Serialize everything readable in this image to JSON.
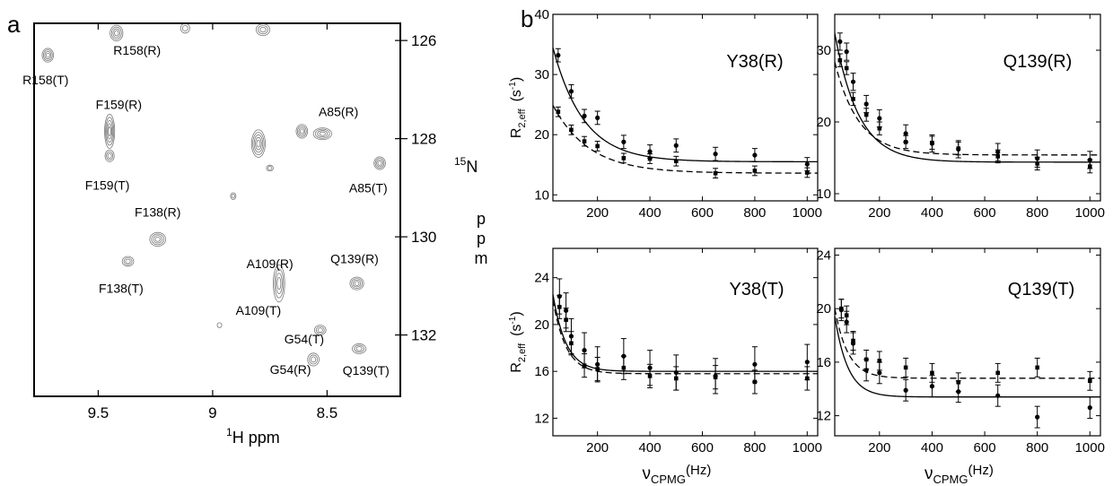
{
  "panel_labels": {
    "a": "a",
    "b": "b"
  },
  "chart_data": [
    {
      "type": "scatter",
      "panel": "a",
      "title": "",
      "xlabel_sup": "1",
      "xlabel": "H ppm",
      "ylabel_sup": "15",
      "ylabel_main": "N",
      "ylabel_unit": [
        "p",
        "p",
        "m"
      ],
      "xlim": [
        9.78,
        8.18
      ],
      "ylim": [
        125.65,
        133.25
      ],
      "xticks": [
        {
          "v": 9.5,
          "label": "9.5"
        },
        {
          "v": 9.0,
          "label": "9"
        },
        {
          "v": 8.5,
          "label": "8.5"
        }
      ],
      "yticks": [
        {
          "v": 126,
          "label": "126"
        },
        {
          "v": 128,
          "label": "128"
        },
        {
          "v": 130,
          "label": "130"
        },
        {
          "v": 132,
          "label": "132"
        }
      ],
      "peaks": [
        {
          "h": 9.72,
          "n": 126.3,
          "label": "R158(T)",
          "lh": 9.73,
          "ln": 126.8,
          "rx": 0.025,
          "ry": 0.14,
          "rings": 4
        },
        {
          "h": 9.42,
          "n": 125.85,
          "label": "R158(R)",
          "lh": 9.33,
          "ln": 126.2,
          "rx": 0.028,
          "ry": 0.16,
          "rings": 4
        },
        {
          "h": 9.12,
          "n": 125.75,
          "label": "",
          "lh": 0,
          "ln": 0,
          "rx": 0.02,
          "ry": 0.1,
          "rings": 2
        },
        {
          "h": 8.78,
          "n": 125.78,
          "label": "",
          "lh": 0,
          "ln": 0,
          "rx": 0.03,
          "ry": 0.12,
          "rings": 3
        },
        {
          "h": 9.45,
          "n": 127.85,
          "label": "F159(R)",
          "lh": 9.41,
          "ln": 127.3,
          "rx": 0.022,
          "ry": 0.35,
          "rings": 5
        },
        {
          "h": 9.45,
          "n": 128.35,
          "label": "F159(T)",
          "lh": 9.46,
          "ln": 128.95,
          "rx": 0.02,
          "ry": 0.12,
          "rings": 3
        },
        {
          "h": 8.8,
          "n": 128.1,
          "label": "",
          "lh": 0,
          "ln": 0,
          "rx": 0.03,
          "ry": 0.28,
          "rings": 5
        },
        {
          "h": 8.75,
          "n": 128.6,
          "label": "",
          "lh": 0,
          "ln": 0,
          "rx": 0.015,
          "ry": 0.06,
          "rings": 2
        },
        {
          "h": 8.61,
          "n": 127.85,
          "label": "",
          "lh": 0,
          "ln": 0,
          "rx": 0.025,
          "ry": 0.14,
          "rings": 4
        },
        {
          "h": 8.52,
          "n": 127.9,
          "label": "A85(R)",
          "lh": 8.45,
          "ln": 127.45,
          "rx": 0.04,
          "ry": 0.12,
          "rings": 4
        },
        {
          "h": 8.27,
          "n": 128.5,
          "label": "A85(T)",
          "lh": 8.32,
          "ln": 129.0,
          "rx": 0.025,
          "ry": 0.13,
          "rings": 4
        },
        {
          "h": 8.91,
          "n": 129.17,
          "label": "",
          "lh": 0,
          "ln": 0,
          "rx": 0.012,
          "ry": 0.07,
          "rings": 2
        },
        {
          "h": 9.24,
          "n": 130.05,
          "label": "F138(R)",
          "lh": 9.24,
          "ln": 129.5,
          "rx": 0.035,
          "ry": 0.14,
          "rings": 4
        },
        {
          "h": 9.37,
          "n": 130.5,
          "label": "F138(T)",
          "lh": 9.4,
          "ln": 131.05,
          "rx": 0.025,
          "ry": 0.1,
          "rings": 3
        },
        {
          "h": 8.71,
          "n": 130.95,
          "label": "A109(R)",
          "lh": 8.75,
          "ln": 130.55,
          "rx": 0.025,
          "ry": 0.38,
          "rings": 4
        },
        {
          "h": 8.37,
          "n": 130.95,
          "label": "Q139(R)",
          "lh": 8.38,
          "ln": 130.45,
          "rx": 0.03,
          "ry": 0.13,
          "rings": 4
        },
        {
          "h": 8.53,
          "n": 131.9,
          "label": "G54(T)",
          "lh": 8.6,
          "ln": 132.08,
          "rx": 0.025,
          "ry": 0.1,
          "rings": 3
        },
        {
          "h": 8.56,
          "n": 132.5,
          "label": "G54(R)",
          "lh": 8.66,
          "ln": 132.7,
          "rx": 0.025,
          "ry": 0.13,
          "rings": 3
        },
        {
          "h": 8.36,
          "n": 132.28,
          "label": "Q139(T)",
          "lh": 8.33,
          "ln": 132.72,
          "rx": 0.03,
          "ry": 0.1,
          "rings": 3
        },
        {
          "h": 8.97,
          "n": 131.8,
          "label": "",
          "lh": 0,
          "ln": 0,
          "rx": 0.01,
          "ry": 0.05,
          "rings": 1
        }
      ],
      "extra_labels": [
        {
          "text": "A109(T)",
          "h": 8.8,
          "n": 131.5
        }
      ]
    },
    {
      "type": "line",
      "panel": "b-top-left",
      "label": "Y38(R)",
      "ylabel": "R",
      "ylabel_sub": "2,eff",
      "ylabel_unit": "(s",
      "ylabel_unit_sup": "-1",
      "xlim": [
        30,
        1040
      ],
      "ylim": [
        9,
        40
      ],
      "xticks": [
        200,
        400,
        600,
        800,
        1000
      ],
      "yticks": [
        10,
        20,
        30,
        40
      ],
      "series": [
        {
          "style": "solid",
          "points": [
            [
              50,
              33.2
            ],
            [
              100,
              27.2
            ],
            [
              150,
              23.1
            ],
            [
              200,
              22.8
            ],
            [
              300,
              18.8
            ],
            [
              400,
              17.2
            ],
            [
              500,
              18.2
            ],
            [
              650,
              16.8
            ],
            [
              800,
              16.6
            ],
            [
              1000,
              15.1
            ]
          ],
          "err": 1.1,
          "fit": {
            "base": 15.5,
            "amp": 24.5,
            "k": 0.0085
          }
        },
        {
          "style": "dashed",
          "points": [
            [
              50,
              23.8
            ],
            [
              100,
              20.8
            ],
            [
              150,
              18.9
            ],
            [
              200,
              18.1
            ],
            [
              300,
              16.1
            ],
            [
              400,
              16.0
            ],
            [
              500,
              15.6
            ],
            [
              650,
              13.6
            ],
            [
              800,
              14.0
            ],
            [
              1000,
              13.7
            ]
          ],
          "err": 0.8,
          "fit": {
            "base": 13.6,
            "amp": 14.0,
            "k": 0.0072
          }
        }
      ]
    },
    {
      "type": "line",
      "panel": "b-top-right",
      "label": "Q139(R)",
      "xlim": [
        30,
        1040
      ],
      "ylim": [
        9,
        35
      ],
      "xticks": [
        200,
        400,
        600,
        800,
        1000
      ],
      "yticks": [
        10,
        20,
        30
      ],
      "series": [
        {
          "style": "solid",
          "points": [
            [
              50,
              31.2
            ],
            [
              75,
              29.8
            ],
            [
              100,
              25.6
            ],
            [
              150,
              22.5
            ],
            [
              200,
              20.5
            ],
            [
              300,
              18.4
            ],
            [
              400,
              17.0
            ],
            [
              500,
              16.2
            ],
            [
              650,
              15.8
            ],
            [
              800,
              14.9
            ],
            [
              1000,
              14.7
            ]
          ],
          "err": 1.2,
          "fit": {
            "base": 14.4,
            "amp": 25.0,
            "k": 0.011
          }
        },
        {
          "style": "dashed",
          "points": [
            [
              50,
              28.6
            ],
            [
              75,
              27.5
            ],
            [
              100,
              23.2
            ],
            [
              150,
              21.0
            ],
            [
              200,
              19.1
            ],
            [
              300,
              17.2
            ],
            [
              400,
              17.1
            ],
            [
              500,
              16.3
            ],
            [
              650,
              15.2
            ],
            [
              800,
              14.2
            ],
            [
              1000,
              13.8
            ]
          ],
          "err": 0.9,
          "fit": {
            "base": 15.4,
            "amp": 18.0,
            "k": 0.011
          }
        }
      ]
    },
    {
      "type": "line",
      "panel": "b-bottom-left",
      "label": "Y38(T)",
      "ylabel": "R",
      "ylabel_sub": "2,eff",
      "ylabel_unit": "(s",
      "ylabel_unit_sup": "-1",
      "xlabel": "ν",
      "xlabel_sub": "CPMG",
      "xlabel_unit": "(Hz)",
      "xlim": [
        30,
        1040
      ],
      "ylim": [
        10.5,
        26.5
      ],
      "xticks": [
        200,
        400,
        600,
        800,
        1000
      ],
      "yticks": [
        12,
        16,
        20,
        24
      ],
      "series": [
        {
          "style": "solid",
          "points": [
            [
              55,
              22.4
            ],
            [
              80,
              21.2
            ],
            [
              100,
              19.0
            ],
            [
              150,
              17.8
            ],
            [
              200,
              16.6
            ],
            [
              300,
              17.3
            ],
            [
              400,
              16.3
            ],
            [
              500,
              15.9
            ],
            [
              650,
              15.6
            ],
            [
              800,
              16.6
            ],
            [
              1000,
              16.8
            ]
          ],
          "err": 1.5,
          "fit": {
            "base": 16.0,
            "amp": 12.0,
            "k": 0.02
          }
        },
        {
          "style": "dashed",
          "points": [
            [
              55,
              21.5
            ],
            [
              80,
              20.4
            ],
            [
              100,
              18.4
            ],
            [
              150,
              16.5
            ],
            [
              200,
              16.2
            ],
            [
              300,
              16.3
            ],
            [
              400,
              15.6
            ],
            [
              500,
              15.4
            ],
            [
              650,
              15.5
            ],
            [
              800,
              15.1
            ],
            [
              1000,
              15.4
            ]
          ],
          "err": 1.0,
          "fit": {
            "base": 15.8,
            "amp": 11.5,
            "k": 0.02
          }
        }
      ]
    },
    {
      "type": "line",
      "panel": "b-bottom-right",
      "label": "Q139(T)",
      "xlabel": "ν",
      "xlabel_sub": "CPMG",
      "xlabel_unit": "(Hz)",
      "xlim": [
        30,
        1040
      ],
      "ylim": [
        10.5,
        24.5
      ],
      "xticks": [
        200,
        400,
        600,
        800,
        1000
      ],
      "yticks": [
        12,
        16,
        20,
        24
      ],
      "series": [
        {
          "style": "solid",
          "points": [
            [
              55,
              19.9
            ],
            [
              75,
              19.0
            ],
            [
              100,
              17.4
            ],
            [
              150,
              15.4
            ],
            [
              200,
              15.2
            ],
            [
              300,
              13.9
            ],
            [
              400,
              14.2
            ],
            [
              500,
              13.8
            ],
            [
              650,
              13.5
            ],
            [
              800,
              11.9
            ],
            [
              1000,
              12.6
            ]
          ],
          "err": 0.8,
          "fit": {
            "base": 13.4,
            "amp": 11.0,
            "k": 0.02
          }
        },
        {
          "style": "dashed",
          "points": [
            [
              55,
              20.0
            ],
            [
              75,
              19.5
            ],
            [
              100,
              17.6
            ],
            [
              150,
              16.2
            ],
            [
              200,
              16.1
            ],
            [
              300,
              15.6
            ],
            [
              400,
              15.2
            ],
            [
              500,
              14.5
            ],
            [
              650,
              15.2
            ],
            [
              800,
              15.6
            ],
            [
              1000,
              14.6
            ]
          ],
          "err": 0.7,
          "fit": {
            "base": 14.8,
            "amp": 9.5,
            "k": 0.02
          }
        }
      ]
    }
  ]
}
